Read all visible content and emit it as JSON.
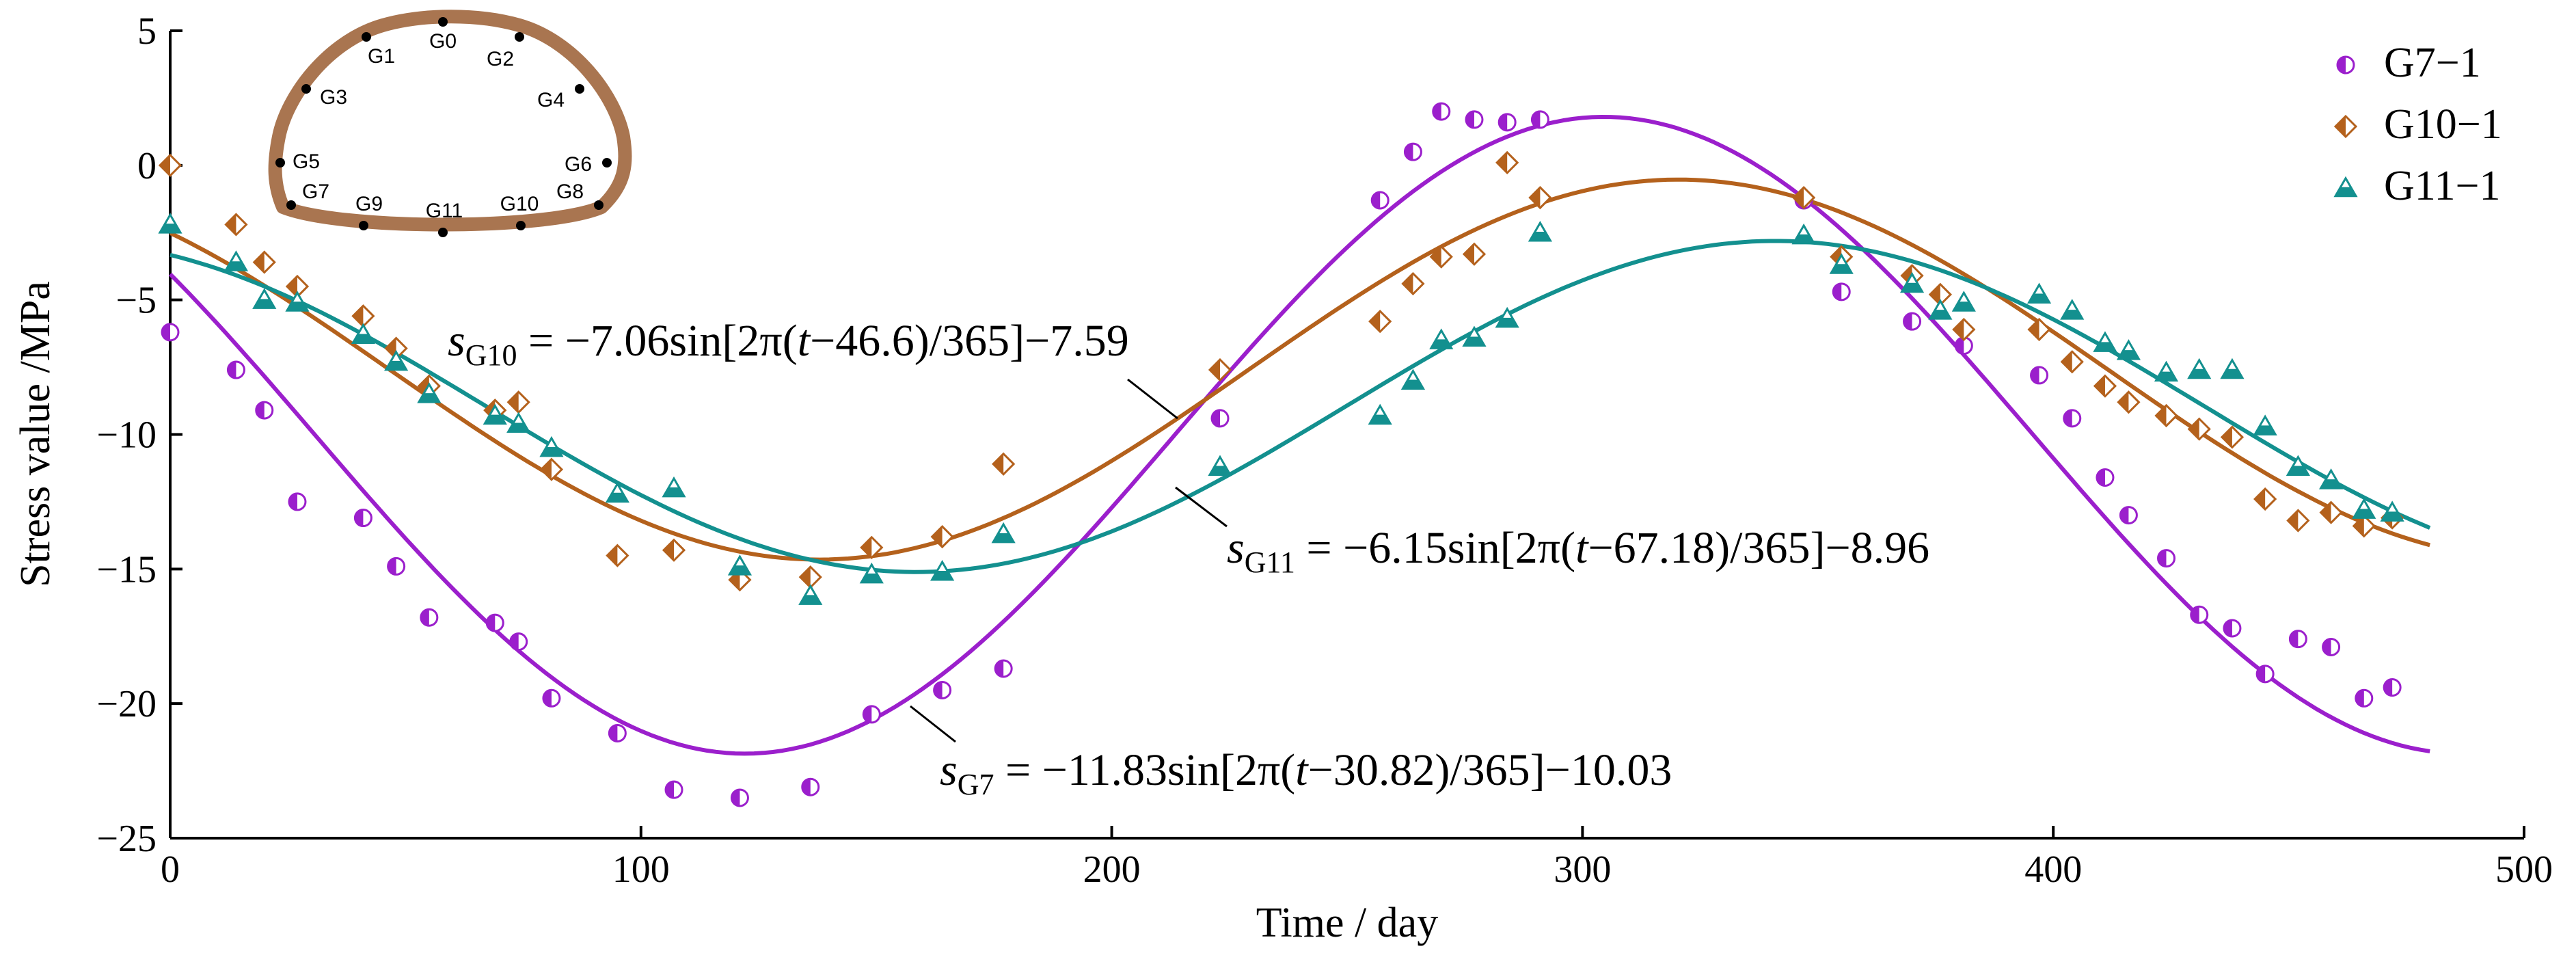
{
  "colors": {
    "g7": "#9B1FCC",
    "g10": "#B4611C",
    "g11": "#13908F",
    "tunnel": "#A97550",
    "axis": "#000000"
  },
  "chart_data": {
    "type": "scatter",
    "title": "",
    "xlabel": "Time / day",
    "ylabel": "Stress value /MPa",
    "xlim": [
      0,
      500
    ],
    "ylim": [
      -25,
      5
    ],
    "xticks": [
      0,
      100,
      200,
      300,
      400,
      500
    ],
    "yticks": [
      5,
      0,
      -5,
      -10,
      -15,
      -20,
      -25
    ],
    "xtick_labels": [
      "0",
      "100",
      "200",
      "300",
      "400",
      "500"
    ],
    "ytick_labels": [
      "5",
      "0",
      "−5",
      "−10",
      "−15",
      "−20",
      "−25"
    ],
    "grid": false,
    "legend_position": "top-right",
    "series": [
      {
        "key": "g7",
        "name": "G7−1",
        "marker": "half-circle",
        "points": [
          [
            0,
            -6.2
          ],
          [
            14,
            -7.6
          ],
          [
            20,
            -9.1
          ],
          [
            27,
            -12.5
          ],
          [
            41,
            -13.1
          ],
          [
            48,
            -14.9
          ],
          [
            55,
            -16.8
          ],
          [
            69,
            -17.0
          ],
          [
            74,
            -17.7
          ],
          [
            81,
            -19.8
          ],
          [
            95,
            -21.1
          ],
          [
            107,
            -23.2
          ],
          [
            121,
            -23.5
          ],
          [
            136,
            -23.1
          ],
          [
            149,
            -20.4
          ],
          [
            164,
            -19.5
          ],
          [
            177,
            -18.7
          ],
          [
            223,
            -9.4
          ],
          [
            257,
            -1.3
          ],
          [
            264,
            0.5
          ],
          [
            270,
            2.0
          ],
          [
            277,
            1.7
          ],
          [
            284,
            1.6
          ],
          [
            291,
            1.7
          ],
          [
            347,
            -1.3
          ],
          [
            355,
            -4.7
          ],
          [
            370,
            -5.8
          ],
          [
            381,
            -6.7
          ],
          [
            397,
            -7.8
          ],
          [
            404,
            -9.4
          ],
          [
            411,
            -11.6
          ],
          [
            416,
            -13.0
          ],
          [
            424,
            -14.6
          ],
          [
            431,
            -16.7
          ],
          [
            438,
            -17.2
          ],
          [
            445,
            -18.9
          ],
          [
            452,
            -17.6
          ],
          [
            459,
            -17.9
          ],
          [
            466,
            -19.8
          ],
          [
            472,
            -19.4
          ]
        ],
        "fit": {
          "amplitude": -11.83,
          "phase": 30.82,
          "offset": -10.03,
          "period": 365
        },
        "fit_range": [
          0,
          480
        ],
        "equation": {
          "prefix": "s",
          "subscript": "G7",
          "body": " = −11.83sin[2π(",
          "var": "t",
          "rest": "−30.82)/365]−10.03"
        }
      },
      {
        "key": "g10",
        "name": "G10−1",
        "marker": "half-diamond",
        "points": [
          [
            0,
            0.0
          ],
          [
            14,
            -2.2
          ],
          [
            20,
            -3.6
          ],
          [
            27,
            -4.5
          ],
          [
            41,
            -5.6
          ],
          [
            48,
            -6.8
          ],
          [
            55,
            -8.2
          ],
          [
            69,
            -9.1
          ],
          [
            74,
            -8.8
          ],
          [
            81,
            -11.3
          ],
          [
            95,
            -14.5
          ],
          [
            107,
            -14.3
          ],
          [
            121,
            -15.4
          ],
          [
            136,
            -15.3
          ],
          [
            149,
            -14.2
          ],
          [
            164,
            -13.8
          ],
          [
            177,
            -11.1
          ],
          [
            223,
            -7.6
          ],
          [
            257,
            -5.8
          ],
          [
            264,
            -4.4
          ],
          [
            270,
            -3.4
          ],
          [
            277,
            -3.3
          ],
          [
            284,
            0.1
          ],
          [
            291,
            -1.2
          ],
          [
            347,
            -1.2
          ],
          [
            355,
            -3.4
          ],
          [
            370,
            -4.1
          ],
          [
            376,
            -4.8
          ],
          [
            381,
            -6.1
          ],
          [
            397,
            -6.1
          ],
          [
            404,
            -7.3
          ],
          [
            411,
            -8.2
          ],
          [
            416,
            -8.8
          ],
          [
            424,
            -9.3
          ],
          [
            431,
            -9.8
          ],
          [
            438,
            -10.1
          ],
          [
            445,
            -12.4
          ],
          [
            452,
            -13.2
          ],
          [
            459,
            -12.9
          ],
          [
            466,
            -13.4
          ],
          [
            472,
            -13.1
          ]
        ],
        "fit": {
          "amplitude": -7.06,
          "phase": 46.6,
          "offset": -7.59,
          "period": 365
        },
        "fit_range": [
          0,
          480
        ],
        "equation": {
          "prefix": "s",
          "subscript": "G10",
          "body": " = −7.06sin[2π(",
          "var": "t",
          "rest": "−46.6)/365]−7.59"
        }
      },
      {
        "key": "g11",
        "name": "G11−1",
        "marker": "half-triangle",
        "points": [
          [
            0,
            -2.2
          ],
          [
            14,
            -3.6
          ],
          [
            20,
            -5.0
          ],
          [
            27,
            -5.1
          ],
          [
            41,
            -6.3
          ],
          [
            48,
            -7.3
          ],
          [
            55,
            -8.5
          ],
          [
            69,
            -9.3
          ],
          [
            74,
            -9.6
          ],
          [
            81,
            -10.5
          ],
          [
            95,
            -12.2
          ],
          [
            107,
            -12.0
          ],
          [
            121,
            -14.9
          ],
          [
            136,
            -16.0
          ],
          [
            149,
            -15.2
          ],
          [
            164,
            -15.1
          ],
          [
            177,
            -13.7
          ],
          [
            223,
            -11.2
          ],
          [
            257,
            -9.3
          ],
          [
            264,
            -8.0
          ],
          [
            270,
            -6.5
          ],
          [
            277,
            -6.4
          ],
          [
            284,
            -5.7
          ],
          [
            291,
            -2.5
          ],
          [
            347,
            -2.6
          ],
          [
            355,
            -3.7
          ],
          [
            370,
            -4.4
          ],
          [
            376,
            -5.4
          ],
          [
            381,
            -5.1
          ],
          [
            397,
            -4.8
          ],
          [
            404,
            -5.4
          ],
          [
            411,
            -6.6
          ],
          [
            416,
            -6.9
          ],
          [
            424,
            -7.7
          ],
          [
            431,
            -7.6
          ],
          [
            438,
            -7.6
          ],
          [
            445,
            -9.7
          ],
          [
            452,
            -11.2
          ],
          [
            459,
            -11.7
          ],
          [
            466,
            -12.8
          ],
          [
            472,
            -12.9
          ]
        ],
        "fit": {
          "amplitude": -6.15,
          "phase": 67.18,
          "offset": -8.96,
          "period": 365
        },
        "fit_range": [
          0,
          480
        ],
        "equation": {
          "prefix": "s",
          "subscript": "G11",
          "body": " = −6.15sin[2π(",
          "var": "t",
          "rest": "−67.18)/365]−8.96"
        }
      }
    ],
    "inset": {
      "description": "tunnel cross-section measuring points",
      "labels": [
        "G0",
        "G1",
        "G2",
        "G3",
        "G4",
        "G5",
        "G6",
        "G7",
        "G8",
        "G9",
        "G10",
        "G11"
      ]
    }
  }
}
